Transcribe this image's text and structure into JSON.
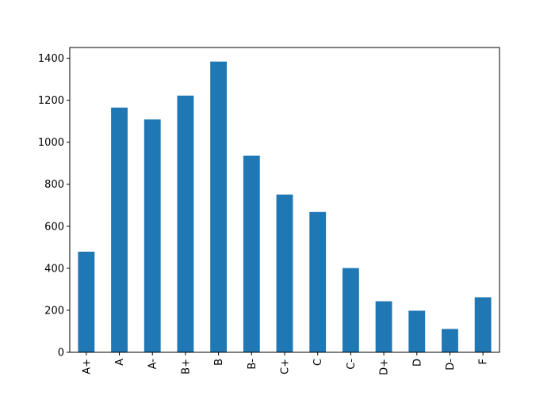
{
  "chart_data": {
    "type": "bar",
    "title": "",
    "xlabel": "",
    "ylabel": "",
    "categories": [
      "A+",
      "A",
      "A-",
      "B+",
      "B",
      "B-",
      "C+",
      "C",
      "C-",
      "D+",
      "D",
      "D-",
      "F"
    ],
    "values": [
      479,
      1165,
      1109,
      1222,
      1384,
      936,
      751,
      668,
      401,
      243,
      198,
      111,
      262
    ],
    "ylim": [
      0,
      1451
    ],
    "yticks": [
      0,
      200,
      400,
      600,
      800,
      1000,
      1200,
      1400
    ],
    "grid": false,
    "legend": "none",
    "bar_color": "#1f77b4"
  }
}
